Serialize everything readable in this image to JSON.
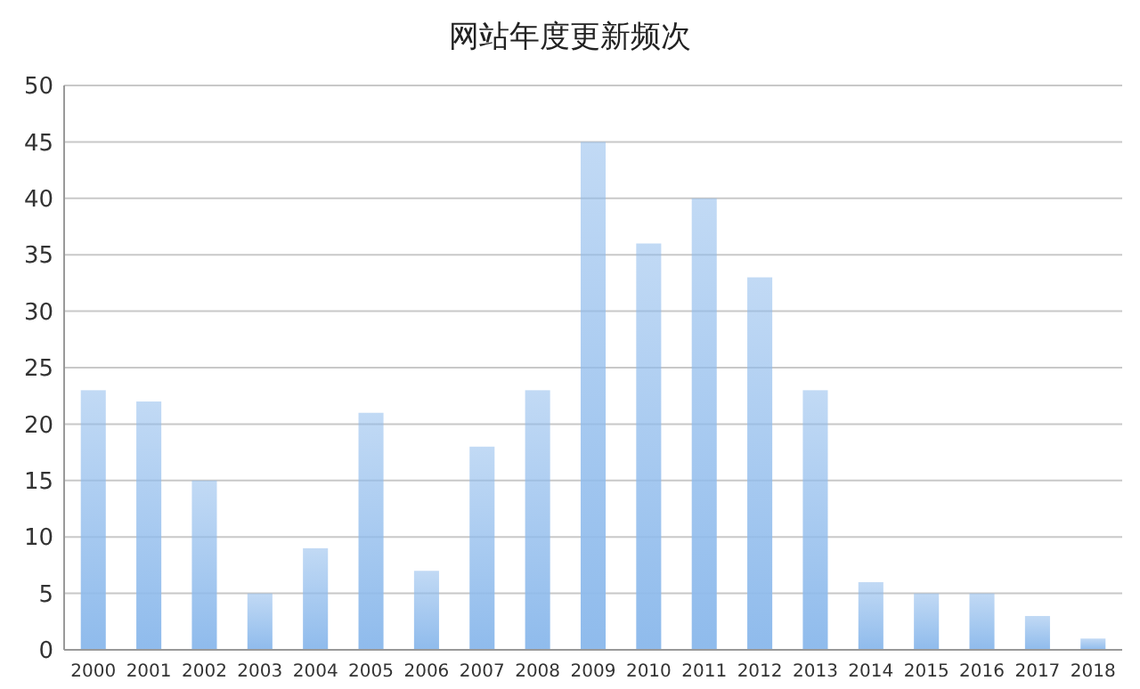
{
  "chart_data": {
    "type": "bar",
    "title": "网站年度更新频次",
    "categories": [
      "2000",
      "2001",
      "2002",
      "2003",
      "2004",
      "2005",
      "2006",
      "2007",
      "2008",
      "2009",
      "2010",
      "2011",
      "2012",
      "2013",
      "2014",
      "2015",
      "2016",
      "2017",
      "2018"
    ],
    "values": [
      23,
      22,
      15,
      5,
      9,
      21,
      7,
      18,
      23,
      45,
      36,
      40,
      33,
      23,
      6,
      5,
      5,
      3,
      1
    ],
    "color": "#8fbbec",
    "ylim": [
      0,
      50
    ],
    "yticks": [
      0,
      5,
      10,
      15,
      20,
      25,
      30,
      35,
      40,
      45,
      50
    ],
    "grid": "y"
  }
}
